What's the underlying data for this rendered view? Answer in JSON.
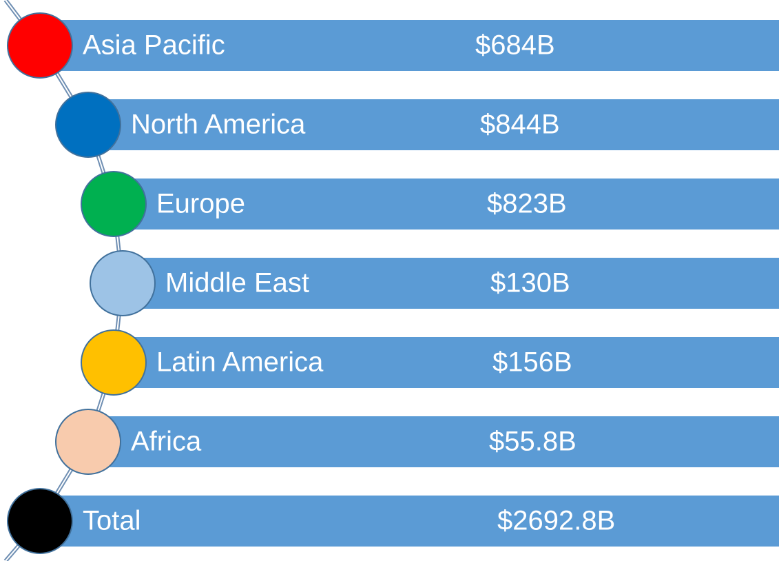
{
  "items": [
    {
      "label": "Asia Pacific",
      "value": "$684B",
      "color": "#ff0000"
    },
    {
      "label": "North America",
      "value": "$844B",
      "color": "#0070c0"
    },
    {
      "label": "Europe",
      "value": "$823B",
      "color": "#00b050"
    },
    {
      "label": "Middle East",
      "value": "$130B",
      "color": "#9dc3e6"
    },
    {
      "label": "Latin America",
      "value": "$156B",
      "color": "#ffc000"
    },
    {
      "label": "Africa",
      "value": "$55.8B",
      "color": "#f8cbad"
    },
    {
      "label": "Total",
      "value": "$2692.8B",
      "color": "#000000"
    }
  ]
}
